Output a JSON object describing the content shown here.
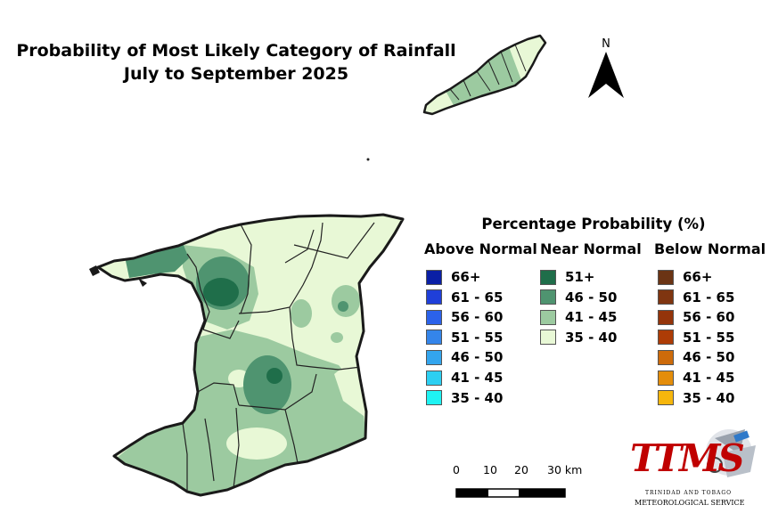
{
  "title": {
    "line1": "Probability of Most Likely Category of Rainfall",
    "line2": "July to September 2025"
  },
  "north_arrow": {
    "label": "N"
  },
  "legend": {
    "title": "Percentage Probability (%)",
    "columns": [
      {
        "heading": "Above Normal",
        "classes": [
          {
            "label": "66+",
            "color": "#0a1fa5"
          },
          {
            "label": "61 - 65",
            "color": "#1f3fd9"
          },
          {
            "label": "56 - 60",
            "color": "#2b62ea"
          },
          {
            "label": "51 - 55",
            "color": "#3485ea"
          },
          {
            "label": "46 - 50",
            "color": "#33a5ee"
          },
          {
            "label": "41 - 45",
            "color": "#2ccff2"
          },
          {
            "label": "35 - 40",
            "color": "#1ff3f3"
          }
        ]
      },
      {
        "heading": "Near Normal",
        "classes": [
          {
            "label": "51+",
            "color": "#1f6e4a"
          },
          {
            "label": "46 - 50",
            "color": "#4f9470"
          },
          {
            "label": "41 - 45",
            "color": "#9ccaa0"
          },
          {
            "label": "35 - 40",
            "color": "#e8f8d6"
          }
        ]
      },
      {
        "heading": "Below Normal",
        "classes": [
          {
            "label": "66+",
            "color": "#6b3414"
          },
          {
            "label": "61 - 65",
            "color": "#7f3510"
          },
          {
            "label": "56 - 60",
            "color": "#94340a"
          },
          {
            "label": "51 - 55",
            "color": "#ad3c06"
          },
          {
            "label": "46 - 50",
            "color": "#cd6b0a"
          },
          {
            "label": "41 - 45",
            "color": "#e48d0a"
          },
          {
            "label": "35 - 40",
            "color": "#f6b60c"
          }
        ]
      }
    ]
  },
  "scale_bar": {
    "ticks": [
      "0",
      "10",
      "20",
      "30 km"
    ]
  },
  "logo": {
    "text": "TTMS",
    "subtitle_line1": "TRINIDAD AND TOBAGO",
    "subtitle_line2": "METEOROLOGICAL SERVICE"
  },
  "map_colors": {
    "near_35_40": "#e8f8d6",
    "near_41_45": "#9ccaa0",
    "near_46_50": "#4f9470",
    "near_51_plus": "#1f6e4a",
    "boundary": "#222222"
  }
}
